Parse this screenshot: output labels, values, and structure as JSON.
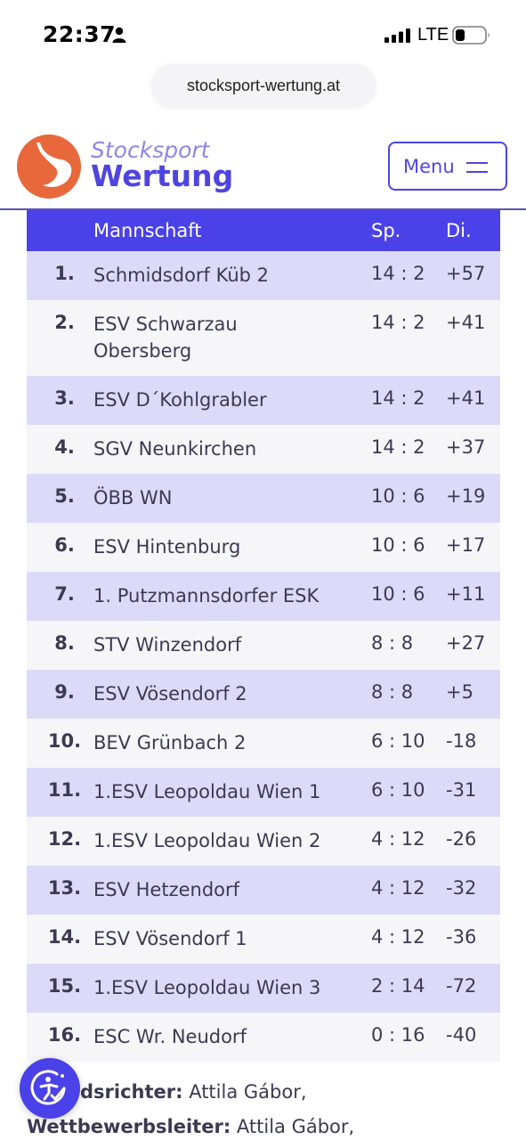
{
  "status_bar": {
    "time": "22:37",
    "network": "LTE"
  },
  "browser": {
    "url": "stocksport-wertung.at"
  },
  "header": {
    "logo_line1": "Stocksport",
    "logo_line2": "Wertung",
    "menu_label": "Menu"
  },
  "colors": {
    "accent": "#4a41e8",
    "row_alt": "#dcdaf9",
    "logo_orange": "#e8683c"
  },
  "table": {
    "headers": [
      "",
      "Mannschaft",
      "Sp.",
      "Di."
    ],
    "rows": [
      {
        "pos": "1.",
        "team": "Schmidsdorf Küb 2",
        "sp": "14 : 2",
        "di": "+57"
      },
      {
        "pos": "2.",
        "team": "ESV Schwarzau Obersberg",
        "sp": "14 : 2",
        "di": "+41"
      },
      {
        "pos": "3.",
        "team": "ESV D´Kohlgrabler",
        "sp": "14 : 2",
        "di": "+41"
      },
      {
        "pos": "4.",
        "team": "SGV Neunkirchen",
        "sp": "14 : 2",
        "di": "+37"
      },
      {
        "pos": "5.",
        "team": "ÖBB WN",
        "sp": "10 : 6",
        "di": "+19"
      },
      {
        "pos": "6.",
        "team": "ESV Hintenburg",
        "sp": "10 : 6",
        "di": "+17"
      },
      {
        "pos": "7.",
        "team": "1. Putzmannsdorfer ESK",
        "sp": "10 : 6",
        "di": "+11"
      },
      {
        "pos": "8.",
        "team": "STV Winzendorf",
        "sp": "8 : 8",
        "di": "+27"
      },
      {
        "pos": "9.",
        "team": "ESV Vösendorf 2",
        "sp": "8 : 8",
        "di": "+5"
      },
      {
        "pos": "10.",
        "team": "BEV Grünbach 2",
        "sp": "6 : 10",
        "di": "-18"
      },
      {
        "pos": "11.",
        "team": "1.ESV Leopoldau Wien 1",
        "sp": "6 : 10",
        "di": "-31"
      },
      {
        "pos": "12.",
        "team": "1.ESV Leopoldau Wien 2",
        "sp": "4 : 12",
        "di": "-26"
      },
      {
        "pos": "13.",
        "team": "ESV Hetzendorf",
        "sp": "4 : 12",
        "di": "-32"
      },
      {
        "pos": "14.",
        "team": "ESV Vösendorf 1",
        "sp": "4 : 12",
        "di": "-36"
      },
      {
        "pos": "15.",
        "team": "1.ESV Leopoldau Wien 3",
        "sp": "2 : 14",
        "di": "-72"
      },
      {
        "pos": "16.",
        "team": "ESC Wr. Neudorf",
        "sp": "0 : 16",
        "di": "-40"
      }
    ]
  },
  "footer": {
    "referee_label": "dsrichter:",
    "referee_value": " Attila Gábor,",
    "manager_label": "Wettbewerbsleiter:",
    "manager_value": " Attila Gábor,"
  }
}
